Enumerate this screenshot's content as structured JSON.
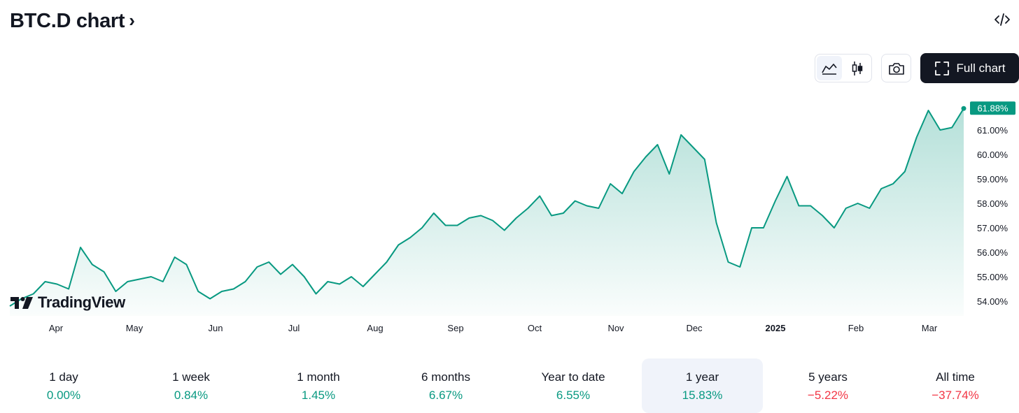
{
  "header": {
    "title": "BTC.D chart",
    "chevron": "›"
  },
  "icons": {
    "embed": "code-embed-icon",
    "area": "area-chart-icon",
    "candles": "candlestick-icon",
    "camera": "camera-icon",
    "fullscreen": "fullscreen-icon"
  },
  "toolbar": {
    "full_chart_label": "Full chart"
  },
  "branding": {
    "logo_text": "TradingView"
  },
  "colors": {
    "line": "#089981",
    "badge": "#089981",
    "positive": "#089981",
    "negative": "#f23645",
    "text": "#131722"
  },
  "chart_data": {
    "type": "area",
    "series_name": "BTC.D",
    "ylim": [
      53.4,
      62.6
    ],
    "y_ticks": [
      "54.00%",
      "55.00%",
      "56.00%",
      "57.00%",
      "58.00%",
      "59.00%",
      "60.00%",
      "61.00%"
    ],
    "x_ticks": [
      "Apr",
      "May",
      "Jun",
      "Jul",
      "Aug",
      "Sep",
      "Oct",
      "Nov",
      "Dec",
      "2025",
      "Feb",
      "Mar"
    ],
    "last_value_label": "61.88%",
    "last_value": 61.88,
    "x": [
      "Mar 13",
      "Mar 18",
      "Mar 23",
      "Mar 28",
      "Apr 1",
      "Apr 6",
      "Apr 10",
      "Apr 13",
      "Apr 17",
      "Apr 22",
      "Apr 27",
      "May 1",
      "May 5",
      "May 9",
      "May 13",
      "May 18",
      "May 22",
      "May 27",
      "Jun 1",
      "Jun 5",
      "Jun 10",
      "Jun 15",
      "Jun 20",
      "Jun 25",
      "Jun 29",
      "Jul 3",
      "Jul 8",
      "Jul 13",
      "Jul 18",
      "Jul 23",
      "Jul 27",
      "Aug 1",
      "Aug 5",
      "Aug 9",
      "Aug 14",
      "Aug 18",
      "Aug 22",
      "Aug 27",
      "Sep 1",
      "Sep 5",
      "Sep 10",
      "Sep 15",
      "Sep 19",
      "Sep 24",
      "Sep 29",
      "Oct 3",
      "Oct 8",
      "Oct 13",
      "Oct 17",
      "Oct 22",
      "Oct 27",
      "Nov 1",
      "Nov 5",
      "Nov 9",
      "Nov 13",
      "Nov 17",
      "Nov 21",
      "Nov 26",
      "Nov 30",
      "Dec 4",
      "Dec 9",
      "Dec 13",
      "Dec 17",
      "Dec 22",
      "Dec 27",
      "Jan 1",
      "Jan 5",
      "Jan 10",
      "Jan 14",
      "Jan 19",
      "Jan 23",
      "Jan 28",
      "Feb 1",
      "Feb 5",
      "Feb 9",
      "Feb 14",
      "Feb 18",
      "Feb 23",
      "Feb 28",
      "Mar 3",
      "Mar 8",
      "Mar 11"
    ],
    "values": [
      53.8,
      54.1,
      54.3,
      54.8,
      54.7,
      54.5,
      56.2,
      55.5,
      55.2,
      54.4,
      54.8,
      54.9,
      55.0,
      54.8,
      55.8,
      55.5,
      54.4,
      54.1,
      54.4,
      54.5,
      54.8,
      55.4,
      55.6,
      55.1,
      55.5,
      55.0,
      54.3,
      54.8,
      54.7,
      55.0,
      54.6,
      55.1,
      55.6,
      56.3,
      56.6,
      57.0,
      57.6,
      57.1,
      57.1,
      57.4,
      57.5,
      57.3,
      56.9,
      57.4,
      57.8,
      58.3,
      57.5,
      57.6,
      58.1,
      57.9,
      57.8,
      58.8,
      58.4,
      59.3,
      59.9,
      60.4,
      59.2,
      60.8,
      60.3,
      59.8,
      57.2,
      55.6,
      55.4,
      57.0,
      57.0,
      58.1,
      59.1,
      57.9,
      57.9,
      57.5,
      57.0,
      57.8,
      58.0,
      57.8,
      58.6,
      58.8,
      59.3,
      60.7,
      61.8,
      61.0,
      61.1,
      61.88
    ]
  },
  "periods": [
    {
      "label": "1 day",
      "value": "0.00%",
      "sign": "pos"
    },
    {
      "label": "1 week",
      "value": "0.84%",
      "sign": "pos"
    },
    {
      "label": "1 month",
      "value": "1.45%",
      "sign": "pos"
    },
    {
      "label": "6 months",
      "value": "6.67%",
      "sign": "pos"
    },
    {
      "label": "Year to date",
      "value": "6.55%",
      "sign": "pos"
    },
    {
      "label": "1 year",
      "value": "15.83%",
      "sign": "pos",
      "active": true
    },
    {
      "label": "5 years",
      "value": "−5.22%",
      "sign": "neg"
    },
    {
      "label": "All time",
      "value": "−37.74%",
      "sign": "neg"
    }
  ]
}
